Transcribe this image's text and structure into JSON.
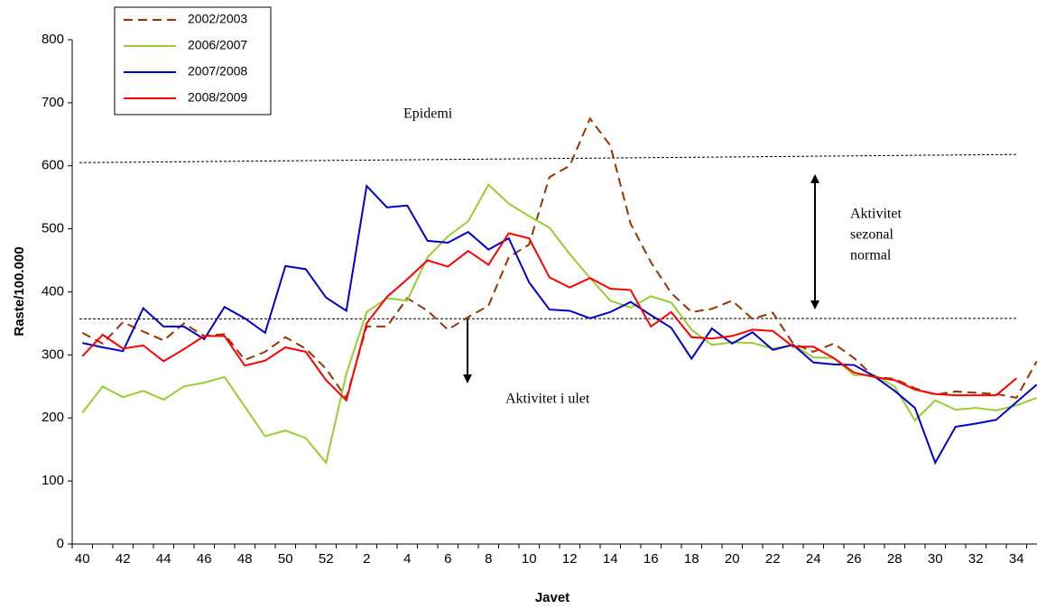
{
  "chart_data": {
    "type": "line",
    "y_label": "Raste/100.000",
    "x_label": "Javet",
    "categories": [
      40,
      null,
      42,
      null,
      44,
      null,
      46,
      null,
      48,
      null,
      50,
      null,
      52,
      null,
      2,
      null,
      4,
      null,
      6,
      null,
      8,
      null,
      10,
      null,
      12,
      null,
      14,
      null,
      16,
      null,
      18,
      null,
      20,
      null,
      22,
      null,
      24,
      null,
      26,
      null,
      28,
      null,
      30,
      null,
      32,
      null,
      34,
      null
    ],
    "series": [
      {
        "name": "2002/2003",
        "color": "#993300",
        "dashed": true,
        "values": [
          335,
          318,
          352,
          337,
          323,
          350,
          330,
          333,
          292,
          305,
          328,
          310,
          278,
          232,
          345,
          345,
          390,
          370,
          340,
          360,
          378,
          455,
          475,
          582,
          600,
          675,
          632,
          508,
          447,
          398,
          368,
          373,
          386,
          357,
          367,
          318,
          305,
          318,
          295,
          265,
          262,
          247,
          237,
          242,
          240,
          238,
          232,
          290
        ]
      },
      {
        "name": "2006/2007",
        "color": "#99cc33",
        "values": [
          208,
          250,
          233,
          243,
          229,
          250,
          256,
          265,
          218,
          171,
          180,
          168,
          129,
          270,
          368,
          390,
          386,
          455,
          488,
          512,
          570,
          540,
          520,
          502,
          460,
          422,
          386,
          375,
          393,
          383,
          340,
          316,
          320,
          319,
          310,
          316,
          296,
          295,
          268,
          268,
          250,
          196,
          228,
          213,
          216,
          212,
          220,
          232
        ]
      },
      {
        "name": "2007/2008",
        "color": "#0000cc",
        "values": [
          319,
          312,
          306,
          374,
          345,
          345,
          325,
          376,
          358,
          335,
          441,
          436,
          391,
          370,
          568,
          534,
          537,
          481,
          478,
          495,
          467,
          485,
          415,
          372,
          370,
          358,
          368,
          384,
          363,
          343,
          294,
          342,
          318,
          336,
          308,
          316,
          288,
          285,
          284,
          266,
          243,
          216,
          129,
          186,
          191,
          197,
          225,
          253
        ]
      },
      {
        "name": "2008/2009",
        "color": "#ff0000",
        "values": [
          298,
          332,
          310,
          315,
          290,
          309,
          330,
          330,
          283,
          291,
          312,
          305,
          260,
          228,
          350,
          392,
          420,
          450,
          440,
          465,
          443,
          493,
          485,
          423,
          407,
          422,
          405,
          403,
          345,
          368,
          328,
          326,
          330,
          340,
          338,
          313,
          313,
          295,
          272,
          265,
          260,
          245,
          238,
          236,
          236,
          236,
          263,
          null
        ]
      }
    ],
    "reference_lines": [
      {
        "values": [
          605,
          618
        ]
      },
      {
        "values": [
          357,
          358
        ]
      }
    ],
    "annotations": [
      {
        "lines": [
          "Epidemi"
        ]
      },
      {
        "lines": [
          "Aktivitet",
          "sezonal",
          "normal"
        ]
      },
      {
        "lines": [
          "Aktivitet i ulet"
        ]
      }
    ],
    "ylim": [
      0,
      800
    ],
    "yticks": [
      0,
      100,
      200,
      300,
      400,
      500,
      600,
      700,
      800
    ],
    "legend": "top-left",
    "grid": false
  }
}
